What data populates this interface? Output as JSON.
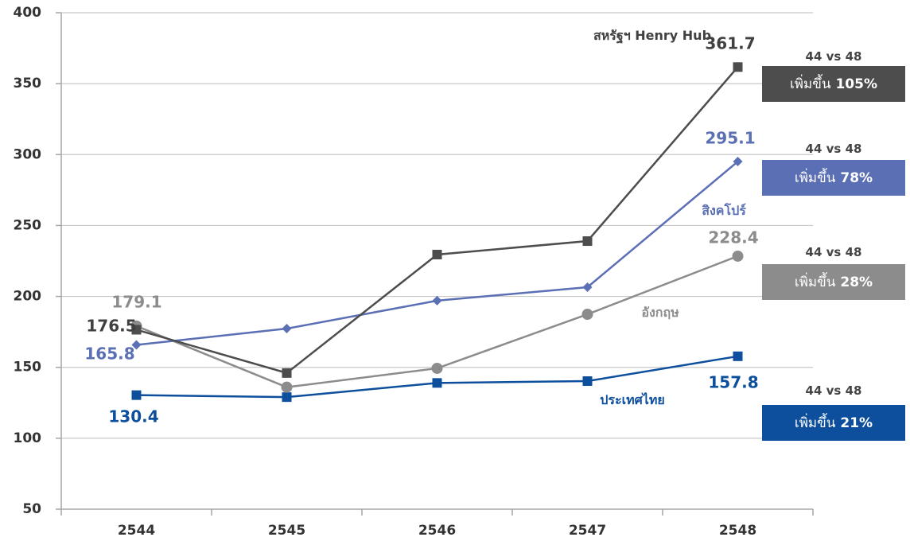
{
  "chart_data": {
    "type": "line",
    "categories": [
      "2544",
      "2545",
      "2546",
      "2547",
      "2548"
    ],
    "ylim": [
      50,
      400
    ],
    "yticks": [
      50,
      100,
      150,
      200,
      250,
      300,
      350,
      400
    ],
    "grid": true,
    "series": [
      {
        "name": "ประเทศไทย",
        "color": "#0d4f9c",
        "marker": "square",
        "values": [
          130.4,
          129,
          139,
          140.3,
          157.8
        ]
      },
      {
        "name": "อังกฤษ",
        "color": "#8c8c8c",
        "marker": "circle",
        "values": [
          179.1,
          136,
          149.3,
          187.4,
          228.4
        ]
      },
      {
        "name": "สิงคโปร์",
        "color": "#5b6fb5",
        "marker": "diamond",
        "values": [
          165.8,
          177.3,
          197,
          206.5,
          295.1
        ]
      },
      {
        "name": "สหรัฐฯ Henry Hub",
        "color": "#4d4d4d",
        "marker": "square",
        "values": [
          176.5,
          146,
          229.5,
          239,
          361.7
        ]
      }
    ],
    "annotations": [
      {
        "text": "44 vs 48",
        "box_label": "เพิ่มขึ้น",
        "box_value": "21%"
      },
      {
        "text": "44 vs 48",
        "box_label": "เพิ่มขึ้น",
        "box_value": "28%"
      },
      {
        "text": "44 vs 48",
        "box_label": "เพิ่มขึ้น",
        "box_value": "78%"
      },
      {
        "text": "44 vs 48",
        "box_label": "เพิ่มขึ้น",
        "box_value": "105%"
      }
    ]
  }
}
